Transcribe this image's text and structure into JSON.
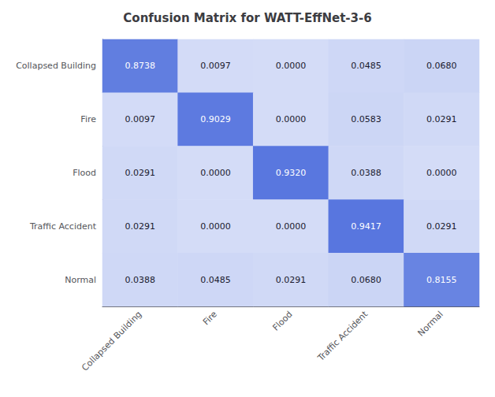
{
  "chart_data": {
    "type": "heatmap",
    "title": "Confusion Matrix for WATT-EffNet-3-6",
    "categories": [
      "Collapsed Building",
      "Fire",
      "Flood",
      "Traffic Accident",
      "Normal"
    ],
    "cells": [
      [
        0.8738,
        0.0097,
        0.0,
        0.0485,
        0.068
      ],
      [
        0.0097,
        0.9029,
        0.0,
        0.0583,
        0.0291
      ],
      [
        0.0291,
        0.0,
        0.932,
        0.0388,
        0.0
      ],
      [
        0.0291,
        0.0,
        0.0,
        0.9417,
        0.0291
      ],
      [
        0.0388,
        0.0485,
        0.0291,
        0.068,
        0.8155
      ]
    ],
    "value_labels": [
      [
        "0.8738",
        "0.0097",
        "0.0000",
        "0.0485",
        "0.0680"
      ],
      [
        "0.0097",
        "0.9029",
        "0.0000",
        "0.0583",
        "0.0291"
      ],
      [
        "0.0291",
        "0.0000",
        "0.9320",
        "0.0388",
        "0.0000"
      ],
      [
        "0.0291",
        "0.0000",
        "0.0000",
        "0.9417",
        "0.0291"
      ],
      [
        "0.0388",
        "0.0485",
        "0.0291",
        "0.0680",
        "0.8155"
      ]
    ],
    "color_range": [
      0.0,
      1.0
    ],
    "data_labels": true
  }
}
